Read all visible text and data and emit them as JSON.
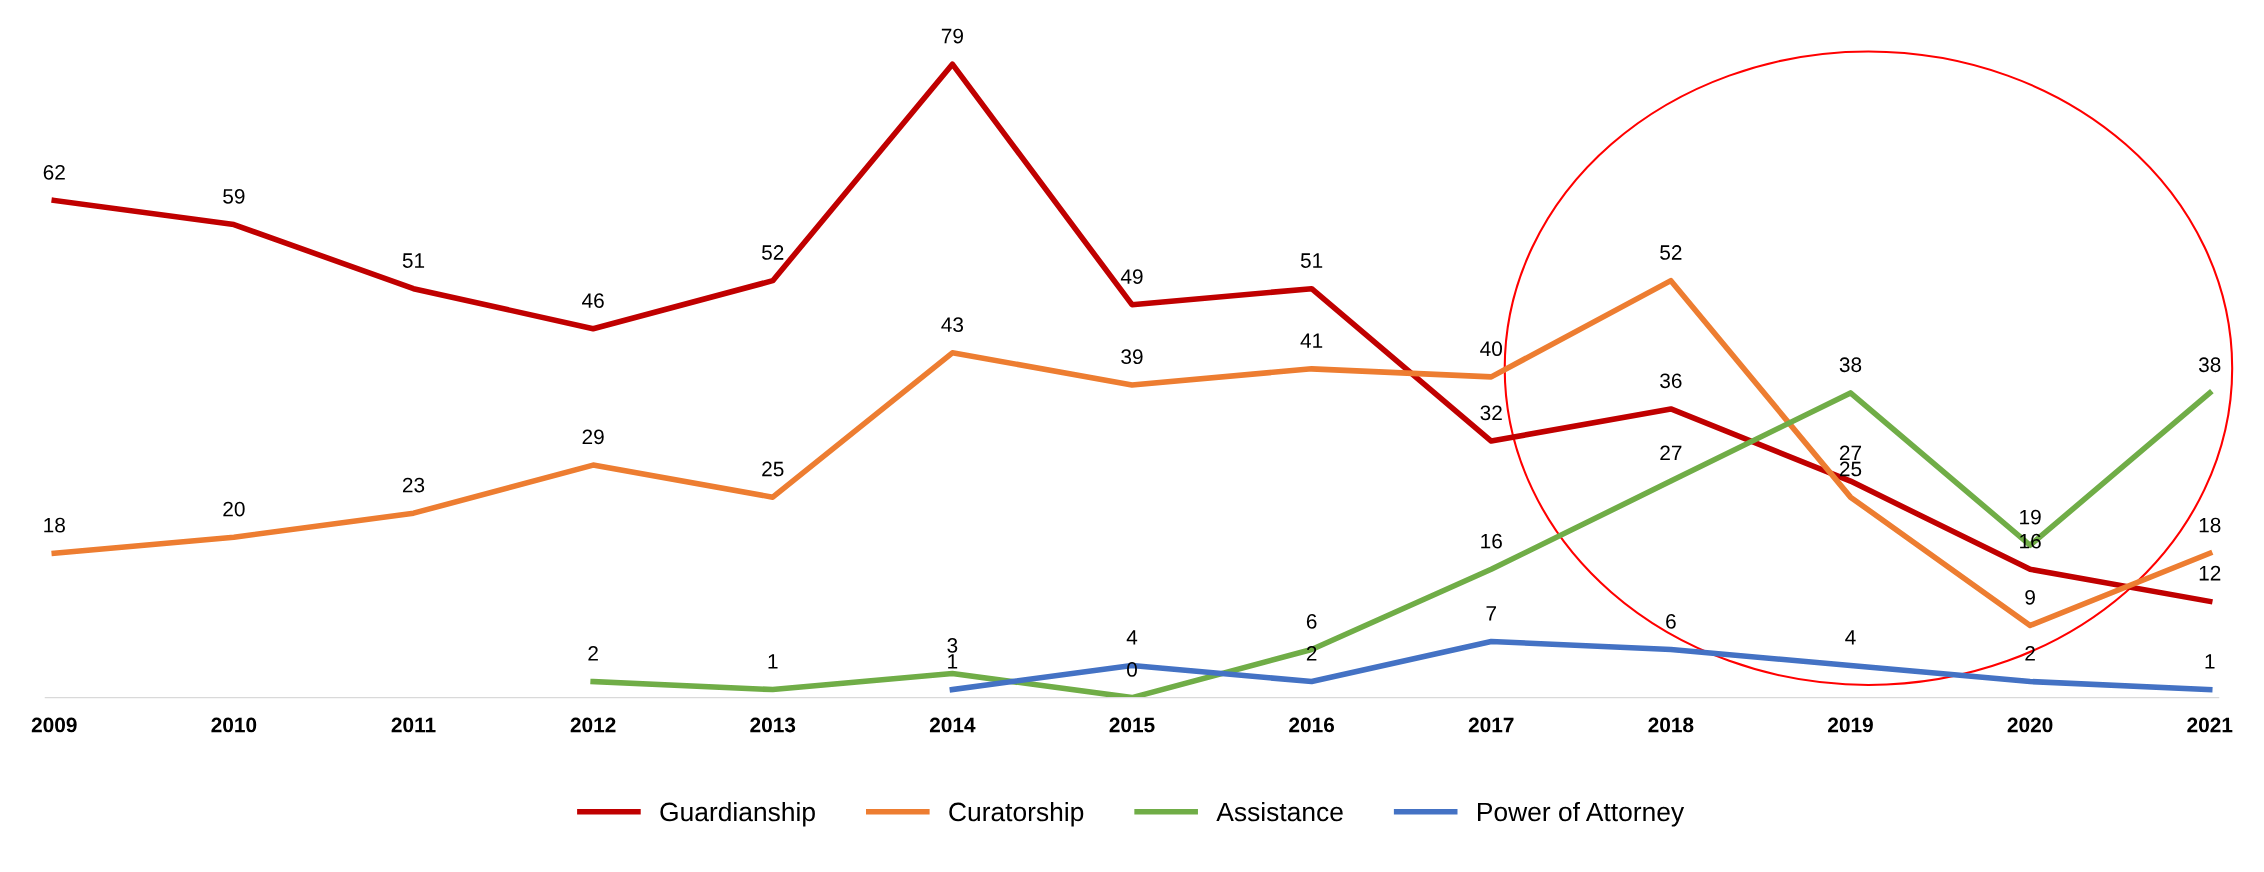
{
  "chart_data": {
    "type": "line",
    "categories": [
      "2009",
      "2010",
      "2011",
      "2012",
      "2013",
      "2014",
      "2015",
      "2016",
      "2017",
      "2018",
      "2019",
      "2020",
      "2021"
    ],
    "series": [
      {
        "name": "Guardianship",
        "color": "#c00000",
        "values": [
          62,
          59,
          51,
          46,
          52,
          79,
          49,
          51,
          32,
          36,
          27,
          16,
          12
        ]
      },
      {
        "name": "Curatorship",
        "color": "#ed7d31",
        "values": [
          18,
          20,
          23,
          29,
          25,
          43,
          39,
          41,
          40,
          52,
          25,
          9,
          18
        ]
      },
      {
        "name": "Assistance",
        "color": "#70ad47",
        "values": [
          null,
          null,
          null,
          2,
          1,
          3,
          0,
          6,
          16,
          27,
          38,
          19,
          38
        ]
      },
      {
        "name": "Power of Attorney",
        "color": "#4472c4",
        "values": [
          null,
          null,
          null,
          null,
          null,
          1,
          4,
          2,
          7,
          6,
          4,
          2,
          1
        ]
      }
    ],
    "data_labels": true,
    "grid": false,
    "legend": "bottom",
    "tick_labels": "x",
    "marker": "none",
    "line_style": "solid"
  }
}
